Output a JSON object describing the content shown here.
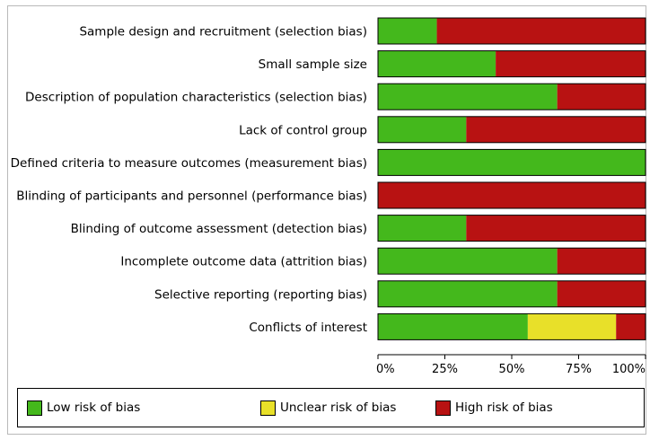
{
  "chart_data": {
    "type": "bar",
    "orientation": "horizontal",
    "stacked": true,
    "percent": true,
    "categories": [
      "Sample design and recruitment (selection bias)",
      "Small sample size",
      "Description of population characteristics (selection bias)",
      "Lack of control group",
      "Defined criteria to measure outcomes (measurement bias)",
      "Blinding of participants and personnel (performance bias)",
      "Blinding of outcome assessment (detection bias)",
      "Incomplete outcome data (attrition bias)",
      "Selective reporting (reporting bias)",
      "Conflicts of interest"
    ],
    "series": [
      {
        "name": "Low risk of bias",
        "color": "#44b81c",
        "values": [
          22,
          44,
          67,
          33,
          100,
          0,
          33,
          67,
          67,
          56
        ]
      },
      {
        "name": "Unclear risk of bias",
        "color": "#e8e029",
        "values": [
          0,
          0,
          0,
          0,
          0,
          0,
          0,
          0,
          0,
          33
        ]
      },
      {
        "name": "High risk of bias",
        "color": "#b81212",
        "values": [
          78,
          56,
          33,
          67,
          0,
          100,
          67,
          33,
          33,
          11
        ]
      }
    ],
    "x_ticks": [
      "0%",
      "25%",
      "50%",
      "75%",
      "100%"
    ],
    "xlim": [
      0,
      100
    ],
    "grid": false,
    "legend_position": "bottom"
  }
}
